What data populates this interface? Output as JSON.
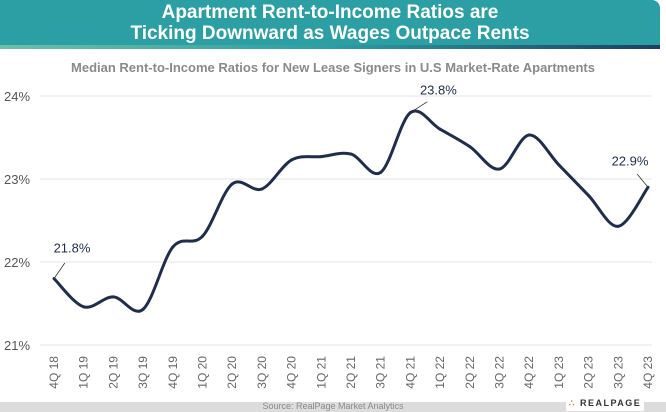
{
  "title_line1": "Apartment Rent-to-Income Ratios are",
  "title_line2": "Ticking Downward as Wages Outpace Rents",
  "source": "Source: RealPage Market Analytics",
  "logo_text": "REALPAGE",
  "colors": {
    "header": "#2b9fa3",
    "line": "#1f2e4d",
    "grid": "#e6e6e6"
  },
  "chart_data": {
    "type": "line",
    "title": "Median Rent-to-Income Ratios for New Lease Signers in U.S Market-Rate Apartments",
    "xlabel": "",
    "ylabel": "",
    "categories": [
      "4Q 18",
      "1Q 19",
      "2Q 19",
      "3Q 19",
      "4Q 19",
      "1Q 20",
      "2Q 20",
      "3Q 20",
      "4Q 20",
      "1Q 21",
      "2Q 21",
      "3Q 21",
      "4Q 21",
      "1Q 22",
      "2Q 22",
      "3Q 22",
      "4Q 22",
      "1Q 23",
      "2Q 23",
      "3Q 23",
      "4Q 23"
    ],
    "values": [
      21.8,
      21.46,
      21.58,
      21.43,
      22.18,
      22.31,
      22.94,
      22.88,
      23.23,
      23.27,
      23.3,
      23.08,
      23.8,
      23.6,
      23.39,
      23.12,
      23.53,
      23.17,
      22.8,
      22.43,
      22.9
    ],
    "ylim": [
      21,
      24
    ],
    "yticks": [
      21,
      22,
      23,
      24
    ],
    "ytick_labels": [
      "21%",
      "22%",
      "23%",
      "24%"
    ],
    "grid": true,
    "annotations": [
      {
        "index": 0,
        "text": "21.8%"
      },
      {
        "index": 12,
        "text": "23.8%"
      },
      {
        "index": 20,
        "text": "22.9%"
      }
    ]
  }
}
